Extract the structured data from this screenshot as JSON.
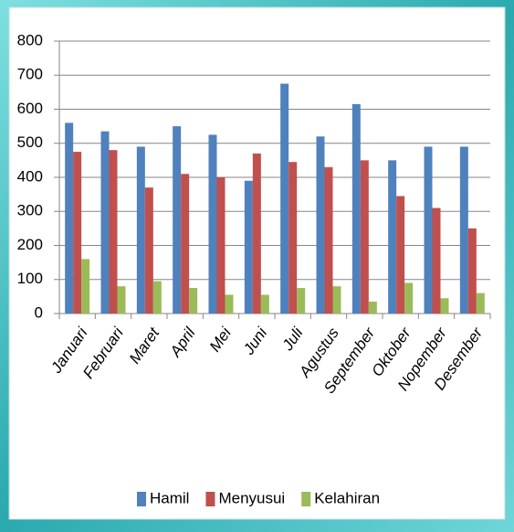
{
  "chart_data": {
    "type": "bar",
    "categories": [
      "Januari",
      "Februari",
      "Maret",
      "April",
      "Mei",
      "Juni",
      "Juli",
      "Agustus",
      "September",
      "Oktober",
      "Nopember",
      "Desember"
    ],
    "series": [
      {
        "name": "Hamil",
        "color": "#4f81bd",
        "values": [
          560,
          535,
          490,
          550,
          525,
          390,
          675,
          520,
          615,
          450,
          490,
          490
        ]
      },
      {
        "name": "Menyusui",
        "color": "#c0504d",
        "values": [
          475,
          480,
          370,
          410,
          400,
          470,
          445,
          430,
          450,
          345,
          310,
          250
        ]
      },
      {
        "name": "Kelahiran",
        "color": "#9bbb59",
        "values": [
          160,
          80,
          95,
          75,
          55,
          55,
          75,
          80,
          35,
          90,
          45,
          60
        ]
      }
    ],
    "ylim": [
      0,
      800
    ],
    "yticks": [
      0,
      100,
      200,
      300,
      400,
      500,
      600,
      700,
      800
    ],
    "grid": true,
    "legend": "bottom"
  }
}
